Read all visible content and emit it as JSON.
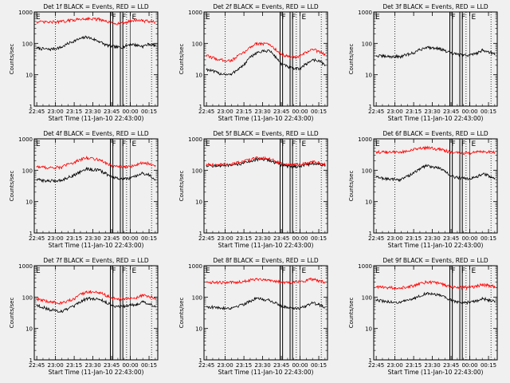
{
  "figure": {
    "ylabel": "Counts/sec",
    "xlabel": "Start Time (11-Jan-10 22:43:00)",
    "x_ticks": [
      "22:45",
      "23:00",
      "23:15",
      "23:30",
      "23:45",
      "00:00",
      "00:15"
    ],
    "y_ticks": [
      "1",
      "10",
      "100",
      "1000"
    ],
    "colors": {
      "events": "#000000",
      "lld": "#ff0000",
      "background": "#f0f0f0"
    }
  },
  "chart_data": [
    {
      "type": "line",
      "title": "Det 1f BLACK = Events, RED = LLD",
      "ylim": [
        1,
        1000
      ],
      "yscale": "log",
      "x_range_minutes": [
        -2,
        97
      ],
      "markers": [
        {
          "label": "F",
          "x_start": 59,
          "x_end": 61
        },
        {
          "label": "F",
          "x_start": 67,
          "x_end": 69
        },
        {
          "label": "E",
          "x_start": 75,
          "x_end": null
        }
      ],
      "dotted_x": [
        15,
        72,
        92
      ],
      "series": [
        {
          "name": "Events",
          "x": [
            0,
            10,
            20,
            30,
            40,
            50,
            55,
            60,
            65,
            70,
            75,
            80,
            85,
            90,
            95
          ],
          "values": [
            70,
            64,
            75,
            120,
            160,
            115,
            90,
            80,
            75,
            78,
            95,
            88,
            80,
            95,
            85
          ]
        },
        {
          "name": "LLD",
          "x": [
            0,
            10,
            20,
            30,
            40,
            50,
            55,
            60,
            65,
            70,
            75,
            80,
            85,
            90,
            95
          ],
          "values": [
            480,
            470,
            490,
            560,
            620,
            580,
            500,
            450,
            430,
            440,
            520,
            560,
            520,
            500,
            480
          ]
        }
      ]
    },
    {
      "type": "line",
      "title": "Det 2f BLACK = Events, RED = LLD",
      "ylim": [
        1,
        1000
      ],
      "yscale": "log",
      "x_range_minutes": [
        -2,
        97
      ],
      "markers": [
        {
          "label": "F",
          "x_start": 59,
          "x_end": 61
        },
        {
          "label": "F",
          "x_start": 67,
          "x_end": 69
        },
        {
          "label": "E",
          "x_start": 75,
          "x_end": null
        }
      ],
      "dotted_x": [
        15,
        72,
        92
      ],
      "series": [
        {
          "name": "Events",
          "x": [
            0,
            10,
            20,
            30,
            40,
            50,
            55,
            60,
            65,
            70,
            75,
            80,
            85,
            90,
            95
          ],
          "values": [
            15,
            11,
            10,
            20,
            50,
            60,
            38,
            22,
            18,
            15,
            16,
            22,
            30,
            28,
            20
          ]
        },
        {
          "name": "LLD",
          "x": [
            0,
            10,
            20,
            30,
            40,
            50,
            55,
            60,
            65,
            70,
            75,
            80,
            85,
            90,
            95
          ],
          "values": [
            40,
            30,
            28,
            50,
            100,
            95,
            65,
            45,
            38,
            35,
            38,
            52,
            65,
            55,
            45
          ]
        }
      ]
    },
    {
      "type": "line",
      "title": "Det 3f BLACK = Events, RED = LLD",
      "ylim": [
        1,
        1000
      ],
      "yscale": "log",
      "x_range_minutes": [
        -2,
        97
      ],
      "markers": [
        {
          "label": "F",
          "x_start": 59,
          "x_end": 61
        },
        {
          "label": "F",
          "x_start": 67,
          "x_end": 69
        },
        {
          "label": "E",
          "x_start": 75,
          "x_end": null
        }
      ],
      "dotted_x": [
        15,
        72,
        92
      ],
      "series": [
        {
          "name": "Events",
          "x": [
            0,
            10,
            20,
            30,
            40,
            50,
            55,
            60,
            65,
            70,
            75,
            80,
            85,
            90,
            95
          ],
          "values": [
            40,
            38,
            38,
            50,
            75,
            70,
            58,
            48,
            45,
            42,
            42,
            48,
            60,
            55,
            45
          ]
        }
      ]
    },
    {
      "type": "line",
      "title": "Det 4f BLACK = Events, RED = LLD",
      "ylim": [
        1,
        1000
      ],
      "yscale": "log",
      "x_range_minutes": [
        -2,
        97
      ],
      "markers": [
        {
          "label": "F",
          "x_start": 59,
          "x_end": 61
        },
        {
          "label": "F",
          "x_start": 67,
          "x_end": 69
        },
        {
          "label": "E",
          "x_start": 75,
          "x_end": null
        }
      ],
      "dotted_x": [
        15,
        72,
        92
      ],
      "series": [
        {
          "name": "Events",
          "x": [
            0,
            10,
            20,
            30,
            40,
            50,
            55,
            60,
            65,
            70,
            75,
            80,
            85,
            90,
            95
          ],
          "values": [
            50,
            45,
            48,
            70,
            110,
            100,
            80,
            60,
            55,
            52,
            55,
            65,
            80,
            70,
            50
          ]
        },
        {
          "name": "LLD",
          "x": [
            0,
            10,
            20,
            30,
            40,
            50,
            55,
            60,
            65,
            70,
            75,
            80,
            85,
            90,
            95
          ],
          "values": [
            130,
            120,
            125,
            180,
            250,
            220,
            170,
            140,
            130,
            125,
            130,
            150,
            180,
            160,
            140
          ]
        }
      ]
    },
    {
      "type": "line",
      "title": "Det 5f BLACK = Events, RED = LLD",
      "ylim": [
        1,
        1000
      ],
      "yscale": "log",
      "x_range_minutes": [
        -2,
        97
      ],
      "markers": [
        {
          "label": "F",
          "x_start": 59,
          "x_end": 61
        },
        {
          "label": "F",
          "x_start": 67,
          "x_end": 69
        },
        {
          "label": "E",
          "x_start": 75,
          "x_end": null
        }
      ],
      "dotted_x": [
        15,
        72,
        92
      ],
      "series": [
        {
          "name": "Events",
          "x": [
            0,
            10,
            20,
            30,
            40,
            50,
            55,
            60,
            65,
            70,
            75,
            80,
            85,
            90,
            95
          ],
          "values": [
            140,
            138,
            140,
            170,
            220,
            210,
            175,
            145,
            135,
            132,
            135,
            150,
            165,
            155,
            140
          ]
        },
        {
          "name": "LLD",
          "x": [
            0,
            10,
            20,
            30,
            40,
            50,
            55,
            60,
            65,
            70,
            75,
            80,
            85,
            90,
            95
          ],
          "values": [
            155,
            150,
            155,
            190,
            250,
            235,
            195,
            160,
            150,
            148,
            150,
            165,
            185,
            170,
            155
          ]
        }
      ]
    },
    {
      "type": "line",
      "title": "Det 6f BLACK = Events, RED = LLD",
      "ylim": [
        1,
        1000
      ],
      "yscale": "log",
      "x_range_minutes": [
        -2,
        97
      ],
      "markers": [
        {
          "label": "F",
          "x_start": 59,
          "x_end": 61
        },
        {
          "label": "F",
          "x_start": 67,
          "x_end": 69
        },
        {
          "label": "E",
          "x_start": 75,
          "x_end": null
        }
      ],
      "dotted_x": [
        15,
        72,
        92
      ],
      "series": [
        {
          "name": "Events",
          "x": [
            0,
            10,
            20,
            30,
            40,
            50,
            55,
            60,
            65,
            70,
            75,
            80,
            85,
            90,
            95
          ],
          "values": [
            60,
            52,
            50,
            80,
            140,
            120,
            90,
            65,
            58,
            55,
            55,
            60,
            75,
            68,
            55
          ]
        },
        {
          "name": "LLD",
          "x": [
            0,
            10,
            20,
            30,
            40,
            50,
            55,
            60,
            65,
            70,
            75,
            80,
            85,
            90,
            95
          ],
          "values": [
            380,
            370,
            380,
            450,
            520,
            470,
            420,
            380,
            360,
            350,
            355,
            370,
            390,
            380,
            370
          ]
        }
      ]
    },
    {
      "type": "line",
      "title": "Det 7f BLACK = Events, RED = LLD",
      "ylim": [
        1,
        1000
      ],
      "yscale": "log",
      "x_range_minutes": [
        -2,
        97
      ],
      "markers": [
        {
          "label": "F",
          "x_start": 59,
          "x_end": 61
        },
        {
          "label": "F",
          "x_start": 67,
          "x_end": 69
        },
        {
          "label": "E",
          "x_start": 75,
          "x_end": null
        }
      ],
      "dotted_x": [
        15,
        72,
        92
      ],
      "series": [
        {
          "name": "Events",
          "x": [
            0,
            10,
            20,
            30,
            40,
            50,
            55,
            60,
            65,
            70,
            75,
            80,
            85,
            90,
            95
          ],
          "values": [
            55,
            40,
            35,
            50,
            90,
            85,
            70,
            55,
            50,
            52,
            55,
            60,
            70,
            62,
            50
          ]
        },
        {
          "name": "LLD",
          "x": [
            0,
            10,
            20,
            30,
            40,
            50,
            55,
            60,
            65,
            70,
            75,
            80,
            85,
            90,
            95
          ],
          "values": [
            85,
            70,
            65,
            85,
            150,
            140,
            115,
            95,
            85,
            88,
            90,
            95,
            115,
            105,
            90
          ]
        }
      ]
    },
    {
      "type": "line",
      "title": "Det 8f BLACK = Events, RED = LLD",
      "ylim": [
        1,
        1000
      ],
      "yscale": "log",
      "x_range_minutes": [
        -2,
        97
      ],
      "markers": [
        {
          "label": "F",
          "x_start": 59,
          "x_end": 61
        },
        {
          "label": "F",
          "x_start": 67,
          "x_end": 69
        },
        {
          "label": "E",
          "x_start": 75,
          "x_end": null
        }
      ],
      "dotted_x": [
        15,
        72,
        92
      ],
      "series": [
        {
          "name": "Events",
          "x": [
            0,
            10,
            20,
            30,
            40,
            50,
            55,
            60,
            65,
            70,
            75,
            80,
            85,
            90,
            95
          ],
          "values": [
            50,
            45,
            45,
            60,
            90,
            80,
            65,
            52,
            48,
            45,
            45,
            52,
            65,
            58,
            48
          ]
        },
        {
          "name": "LLD",
          "x": [
            0,
            10,
            20,
            30,
            40,
            50,
            55,
            60,
            65,
            70,
            75,
            80,
            85,
            90,
            95
          ],
          "values": [
            300,
            290,
            290,
            320,
            380,
            350,
            320,
            300,
            290,
            300,
            310,
            340,
            380,
            330,
            300
          ]
        }
      ]
    },
    {
      "type": "line",
      "title": "Det 9f BLACK = Events, RED = LLD",
      "ylim": [
        1,
        1000
      ],
      "yscale": "log",
      "x_range_minutes": [
        -2,
        97
      ],
      "markers": [
        {
          "label": "F",
          "x_start": 59,
          "x_end": 61
        },
        {
          "label": "F",
          "x_start": 67,
          "x_end": 69
        },
        {
          "label": "E",
          "x_start": 75,
          "x_end": null
        }
      ],
      "dotted_x": [
        15,
        72,
        92
      ],
      "series": [
        {
          "name": "Events",
          "x": [
            0,
            10,
            20,
            30,
            40,
            50,
            55,
            60,
            65,
            70,
            75,
            80,
            85,
            90,
            95
          ],
          "values": [
            80,
            70,
            68,
            90,
            130,
            120,
            95,
            78,
            70,
            68,
            68,
            75,
            90,
            82,
            72
          ]
        },
        {
          "name": "LLD",
          "x": [
            0,
            10,
            20,
            30,
            40,
            50,
            55,
            60,
            65,
            70,
            75,
            80,
            85,
            90,
            95
          ],
          "values": [
            210,
            200,
            200,
            230,
            300,
            280,
            240,
            210,
            200,
            200,
            205,
            220,
            250,
            235,
            215
          ]
        }
      ]
    }
  ]
}
